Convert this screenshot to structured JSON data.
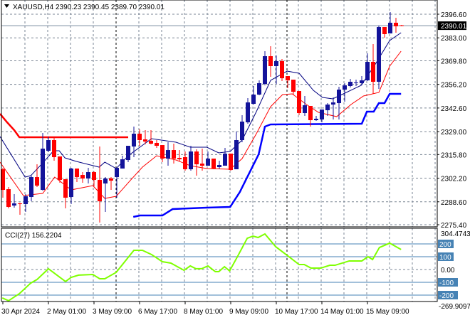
{
  "header": {
    "symbol": "XAUUSD,H4",
    "ohlc_text": "2390.23 2390.45 2389.70 2390.01",
    "menu_icon": "triangle-down-icon"
  },
  "cci_label": "CCI(27) 156.2204",
  "colors": {
    "bull": "#13139a",
    "bear": "#ff0000",
    "ma_fast": "#000080",
    "ma_slow": "#ff0000",
    "stop_blue": "#0000ff",
    "stop_red": "#ff0000",
    "cci": "#7fff00",
    "level_line": "#4682b4",
    "grid": "#7a8594"
  },
  "chart_data": [
    {
      "type": "candlestick",
      "title": "XAUUSD,H4",
      "current_price": 2390.01,
      "current_price_label": "2390.01",
      "ylim": [
        2275.4,
        2396.6
      ],
      "y_ticks": [
        "2396.60",
        "2383.00",
        "2369.80",
        "2356.20",
        "2342.60",
        "2329.00",
        "2315.80",
        "2302.20",
        "2288.60",
        "2275.40"
      ],
      "y_tick_values": [
        2396.6,
        2383.0,
        2369.8,
        2356.2,
        2342.6,
        2329.0,
        2315.8,
        2302.2,
        2288.6,
        2275.4
      ],
      "x_ticks": [
        {
          "bar": 0,
          "label": "30 Apr 2024"
        },
        {
          "bar": 8,
          "label": "2 May 01:00"
        },
        {
          "bar": 16,
          "label": "3 May 09:00"
        },
        {
          "bar": 24,
          "label": "6 May 17:00"
        },
        {
          "bar": 32,
          "label": "8 May 01:00"
        },
        {
          "bar": 40,
          "label": "9 May 09:00"
        },
        {
          "bar": 48,
          "label": "10 May 17:00"
        },
        {
          "bar": 56,
          "label": "14 May 01:00"
        },
        {
          "bar": 64,
          "label": "15 May 09:00"
        }
      ],
      "candles_ohlc": [
        [
          2307.33,
          2308.15,
          2290.95,
          2295.45
        ],
        [
          2295.86,
          2297.09,
          2284.81,
          2285.63
        ],
        [
          2286.44,
          2292.99,
          2285.22,
          2287.67
        ],
        [
          2287.67,
          2288.08,
          2281.12,
          2287.26
        ],
        [
          2287.26,
          2292.99,
          2282.76,
          2291.77
        ],
        [
          2291.36,
          2303.64,
          2288.9,
          2302.82
        ],
        [
          2302.82,
          2310.19,
          2297.09,
          2297.91
        ],
        [
          2295.45,
          2328.21,
          2295.04,
          2319.2
        ],
        [
          2317.97,
          2326.17,
          2317.16,
          2324.12
        ],
        [
          2324.12,
          2325.76,
          2312.24,
          2314.29
        ],
        [
          2314.7,
          2314.7,
          2299.55,
          2301.19
        ],
        [
          2301.6,
          2301.6,
          2284.81,
          2290.95
        ],
        [
          2291.36,
          2308.15,
          2287.26,
          2307.74
        ],
        [
          2307.74,
          2307.74,
          2299.96,
          2302.82
        ],
        [
          2304.05,
          2305.69,
          2299.55,
          2302.01
        ],
        [
          2302.01,
          2308.15,
          2299.14,
          2305.69
        ],
        [
          2305.69,
          2306.1,
          2297.5,
          2301.19
        ],
        [
          2301.19,
          2320.43,
          2276.62,
          2288.9
        ],
        [
          2299.14,
          2302.82,
          2282.76,
          2302.01
        ],
        [
          2302.01,
          2302.82,
          2295.45,
          2300.78
        ],
        [
          2302.82,
          2308.15,
          2290.95,
          2308.15
        ],
        [
          2307.74,
          2315.11,
          2307.74,
          2313.06
        ],
        [
          2312.65,
          2320.84,
          2311.42,
          2320.84
        ],
        [
          2320.43,
          2331.9,
          2314.29,
          2327.81
        ],
        [
          2327.81,
          2330.26,
          2320.84,
          2324.12
        ],
        [
          2324.53,
          2329.85,
          2321.66,
          2323.3
        ],
        [
          2323.71,
          2329.85,
          2321.66,
          2322.07
        ],
        [
          2322.48,
          2324.12,
          2319.61,
          2320.84
        ],
        [
          2321.25,
          2321.25,
          2311.42,
          2313.47
        ],
        [
          2313.47,
          2322.89,
          2309.38,
          2318.38
        ],
        [
          2318.38,
          2322.07,
          2310.6,
          2313.47
        ],
        [
          2313.88,
          2318.38,
          2311.83,
          2313.06
        ],
        [
          2314.29,
          2317.56,
          2306.51,
          2307.33
        ],
        [
          2307.33,
          2320.84,
          2306.51,
          2317.56
        ],
        [
          2317.56,
          2318.79,
          2303.64,
          2310.19
        ],
        [
          2310.6,
          2319.2,
          2306.51,
          2309.38
        ],
        [
          2309.38,
          2317.56,
          2309.38,
          2313.47
        ],
        [
          2313.47,
          2313.47,
          2307.33,
          2307.74
        ],
        [
          2308.56,
          2312.24,
          2307.74,
          2309.78
        ],
        [
          2309.38,
          2319.61,
          2309.38,
          2316.34
        ],
        [
          2316.34,
          2316.34,
          2306.51,
          2306.92
        ],
        [
          2307.33,
          2329.03,
          2307.33,
          2324.12
        ],
        [
          2324.12,
          2338.45,
          2322.89,
          2334.77
        ],
        [
          2334.36,
          2348.28,
          2333.54,
          2345.82
        ],
        [
          2345.0,
          2355.24,
          2344.59,
          2350.33
        ],
        [
          2350.33,
          2358.52,
          2349.92,
          2356.88
        ],
        [
          2356.47,
          2375.31,
          2355.65,
          2372.44
        ],
        [
          2372.44,
          2378.17,
          2360.56,
          2366.71
        ],
        [
          2366.71,
          2372.85,
          2356.47,
          2369.57
        ],
        [
          2369.57,
          2370.8,
          2358.11,
          2359.74
        ],
        [
          2360.97,
          2360.97,
          2354.01,
          2358.52
        ],
        [
          2358.93,
          2358.93,
          2350.33,
          2351.96
        ],
        [
          2352.37,
          2352.37,
          2338.45,
          2339.68
        ],
        [
          2339.68,
          2349.51,
          2338.04,
          2344.18
        ],
        [
          2343.77,
          2343.77,
          2331.9,
          2335.59
        ],
        [
          2335.59,
          2338.04,
          2335.18,
          2336.41
        ],
        [
          2336.0,
          2341.73,
          2334.36,
          2341.73
        ],
        [
          2341.32,
          2345.41,
          2338.04,
          2344.59
        ],
        [
          2344.59,
          2348.69,
          2336.0,
          2345.82
        ],
        [
          2345.41,
          2354.83,
          2336.0,
          2353.19
        ],
        [
          2353.19,
          2356.88,
          2346.23,
          2355.65
        ],
        [
          2355.24,
          2359.33,
          2354.42,
          2357.7
        ],
        [
          2356.88,
          2358.93,
          2355.24,
          2357.29
        ],
        [
          2356.88,
          2360.97,
          2355.65,
          2358.52
        ],
        [
          2358.52,
          2374.08,
          2358.11,
          2369.16
        ],
        [
          2369.16,
          2379.4,
          2350.74,
          2357.7
        ],
        [
          2357.7,
          2390.05,
          2353.6,
          2389.23
        ],
        [
          2389.23,
          2389.23,
          2383.09,
          2385.13
        ],
        [
          2385.54,
          2397.83,
          2385.54,
          2391.69
        ],
        [
          2391.69,
          2394.55,
          2385.95,
          2389.64
        ],
        [
          2390.23,
          2390.45,
          2389.7,
          2390.01
        ]
      ],
      "overlays": {
        "ma_fast": [
          [
            -0.5,
            2326.17
          ],
          [
            3.9,
            2302.82
          ],
          [
            4.9,
            2303.64
          ],
          [
            6.9,
            2310.6
          ],
          [
            8.9,
            2317.97
          ],
          [
            9.9,
            2317.97
          ],
          [
            10.9,
            2313.88
          ],
          [
            12.9,
            2311.83
          ],
          [
            15.9,
            2309.38
          ],
          [
            16.9,
            2308.56
          ],
          [
            17.9,
            2311.42
          ],
          [
            19.9,
            2307.74
          ],
          [
            22,
            2315.11
          ],
          [
            26.1,
            2324.94
          ],
          [
            30.4,
            2322.89
          ],
          [
            32.9,
            2320.02
          ],
          [
            35.8,
            2320.02
          ],
          [
            37.9,
            2316.75
          ],
          [
            39.9,
            2317.56
          ],
          [
            42,
            2324.12
          ],
          [
            44.5,
            2340.5
          ],
          [
            47,
            2358.52
          ],
          [
            49.9,
            2363.84
          ],
          [
            52,
            2362.61
          ],
          [
            54.5,
            2352.78
          ],
          [
            56.1,
            2348.69
          ],
          [
            57.9,
            2347.87
          ],
          [
            59.5,
            2350.33
          ],
          [
            62.9,
            2355.65
          ],
          [
            65.4,
            2367.94
          ],
          [
            67.9,
            2381.45
          ],
          [
            69.9,
            2385.95
          ]
        ],
        "ma_slow": [
          [
            -0.5,
            2311.42
          ],
          [
            3.6,
            2292.18
          ],
          [
            7,
            2293.41
          ],
          [
            9.1,
            2302.82
          ],
          [
            12,
            2295.45
          ],
          [
            15.8,
            2297.91
          ],
          [
            17.9,
            2290.54
          ],
          [
            19.9,
            2291.77
          ],
          [
            22,
            2299.55
          ],
          [
            24.5,
            2308.56
          ],
          [
            27,
            2315.11
          ],
          [
            30.4,
            2312.65
          ],
          [
            32.9,
            2309.38
          ],
          [
            35.8,
            2307.74
          ],
          [
            39.9,
            2307.33
          ],
          [
            42,
            2313.47
          ],
          [
            44.5,
            2327.81
          ],
          [
            47,
            2343.37
          ],
          [
            49.1,
            2350.33
          ],
          [
            50.8,
            2350.74
          ],
          [
            53.3,
            2344.59
          ],
          [
            55.4,
            2340.09
          ],
          [
            58.6,
            2337.63
          ],
          [
            61.1,
            2344.59
          ],
          [
            63.3,
            2349.51
          ],
          [
            66,
            2351.56
          ],
          [
            67.9,
            2366.71
          ],
          [
            69.9,
            2375.31
          ]
        ],
        "stop_blue": [
          [
            22.9,
            2279.89
          ],
          [
            24.1,
            2280.71
          ],
          [
            28,
            2280.71
          ],
          [
            29.8,
            2284.4
          ],
          [
            35.8,
            2285.22
          ],
          [
            39.9,
            2285.63
          ],
          [
            41.6,
            2294.23
          ],
          [
            42.9,
            2302.82
          ],
          [
            44.9,
            2315.93
          ],
          [
            46,
            2331.9
          ],
          [
            47,
            2333.13
          ],
          [
            63,
            2333.54
          ],
          [
            63.9,
            2340.5
          ],
          [
            65.1,
            2340.5
          ],
          [
            66,
            2345.41
          ],
          [
            67,
            2345.41
          ],
          [
            67.9,
            2350.74
          ],
          [
            69.9,
            2350.74
          ]
        ],
        "stop_red": [
          [
            -0.5,
            2339.27
          ],
          [
            0.75,
            2334.36
          ],
          [
            2,
            2329.85
          ],
          [
            2.9,
            2325.76
          ],
          [
            22,
            2325.76
          ]
        ]
      }
    },
    {
      "type": "line",
      "title": "CCI(27)",
      "value": 156.2204,
      "ylim": [
        -269.9097,
        304.4743
      ],
      "y_tick_labels": {
        "max": "304.4743",
        "min": "-269.9097",
        "zero": "0.00"
      },
      "levels": [
        {
          "value": 200,
          "label": "200"
        },
        {
          "value": 100,
          "label": "100"
        },
        {
          "value": -100,
          "label": "-100"
        },
        {
          "value": -200,
          "label": "-200"
        }
      ],
      "series": [
        [
          -0.1,
          -222
        ],
        [
          1,
          -244
        ],
        [
          2.9,
          -189
        ],
        [
          4.9,
          -106
        ],
        [
          6,
          -78
        ],
        [
          8,
          6
        ],
        [
          11,
          -94
        ],
        [
          12,
          -61
        ],
        [
          13.3,
          -44
        ],
        [
          15.8,
          -39
        ],
        [
          17,
          -72
        ],
        [
          17.9,
          -72
        ],
        [
          19.9,
          -22
        ],
        [
          23,
          150
        ],
        [
          24.5,
          150
        ],
        [
          26.1,
          117
        ],
        [
          28,
          61
        ],
        [
          29.5,
          50
        ],
        [
          31.8,
          -6
        ],
        [
          32.9,
          28
        ],
        [
          33.9,
          6
        ],
        [
          34.9,
          6
        ],
        [
          36,
          28
        ],
        [
          37.3,
          -17
        ],
        [
          37.9,
          -17
        ],
        [
          38.9,
          22
        ],
        [
          39.8,
          -11
        ],
        [
          41.1,
          94
        ],
        [
          42.9,
          244
        ],
        [
          43.9,
          261
        ],
        [
          44.8,
          250
        ],
        [
          46,
          278
        ],
        [
          47.9,
          178
        ],
        [
          49.9,
          111
        ],
        [
          52,
          39
        ],
        [
          52.9,
          39
        ],
        [
          54.1,
          11
        ],
        [
          55.8,
          11
        ],
        [
          57.4,
          33
        ],
        [
          58.3,
          33
        ],
        [
          60.8,
          67
        ],
        [
          63,
          67
        ],
        [
          64.1,
          100
        ],
        [
          64.9,
          78
        ],
        [
          66.1,
          172
        ],
        [
          67.9,
          206
        ],
        [
          69.9,
          156
        ]
      ]
    }
  ]
}
